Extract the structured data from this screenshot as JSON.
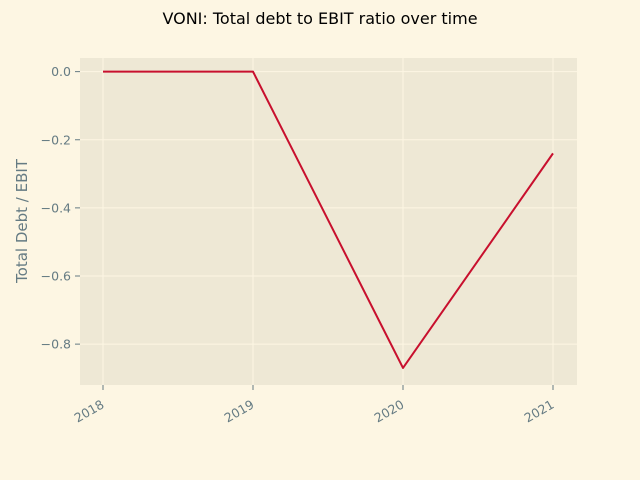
{
  "chart_data": {
    "type": "line",
    "title": "VONI: Total debt to EBIT ratio over time",
    "xlabel": "",
    "ylabel": "Total Debt / EBIT",
    "x": [
      "2018",
      "2019",
      "2020",
      "2021"
    ],
    "series": [
      {
        "values": [
          0.0,
          0.0,
          -0.87,
          -0.24
        ]
      }
    ],
    "ylim": [
      -0.92,
      0.04
    ],
    "yticks": [
      0.0,
      -0.2,
      -0.4,
      -0.6,
      -0.8
    ],
    "ytick_labels": [
      "0.0",
      "−0.2",
      "−0.4",
      "−0.6",
      "−0.8"
    ],
    "grid": true,
    "legend": "none",
    "colors": {
      "background": "#fdf6e3",
      "plot_area": "#eee8d5",
      "grid": "#fdf6e3",
      "line": "#c8102e",
      "text": "#657b83"
    }
  }
}
